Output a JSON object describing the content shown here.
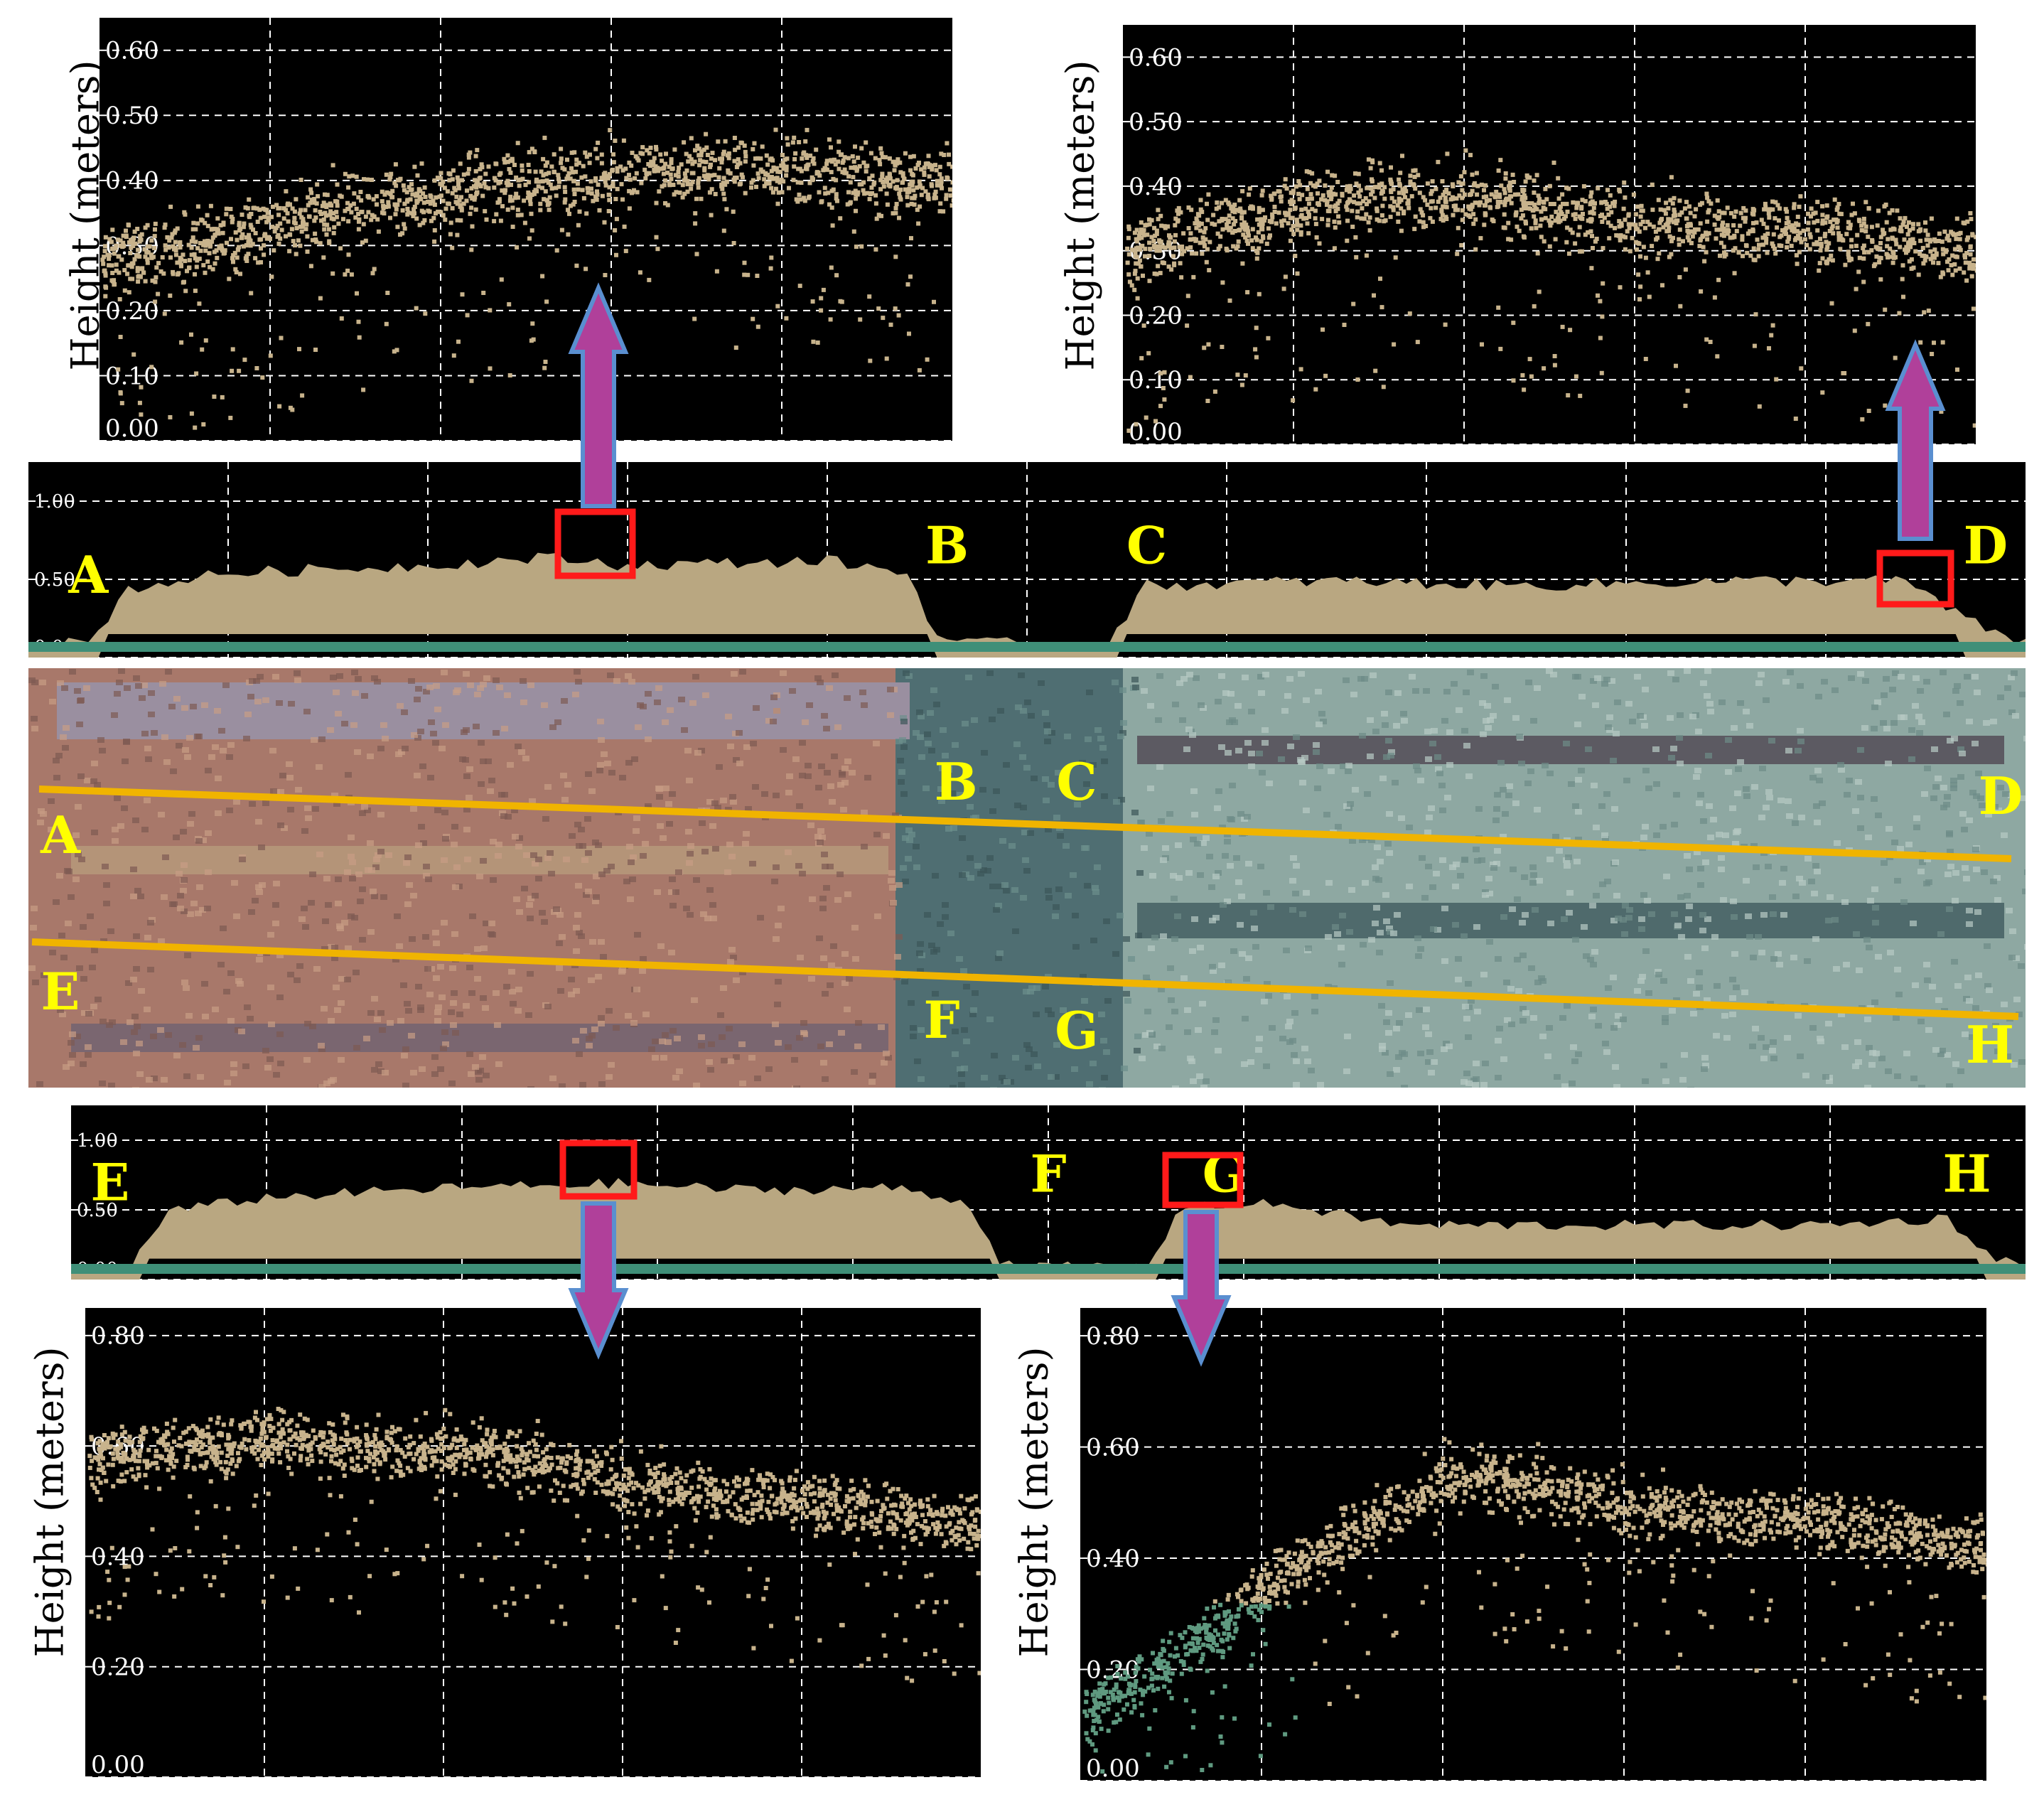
{
  "chart_data": [
    {
      "id": "detail_top_left",
      "type": "scatter",
      "ylabel": "Height (meters)",
      "yticks": [
        "0.00",
        "0.10",
        "0.20",
        "0.30",
        "0.40",
        "0.50",
        "0.60"
      ],
      "ylim": [
        0,
        0.65
      ],
      "grid": true,
      "point_color": "#c8b38c",
      "profile": [
        [
          0,
          0.28
        ],
        [
          0.1,
          0.3
        ],
        [
          0.2,
          0.33
        ],
        [
          0.3,
          0.36
        ],
        [
          0.4,
          0.38
        ],
        [
          0.5,
          0.4
        ],
        [
          0.6,
          0.41
        ],
        [
          0.7,
          0.42
        ],
        [
          0.8,
          0.42
        ],
        [
          0.9,
          0.41
        ],
        [
          1,
          0.4
        ]
      ]
    },
    {
      "id": "detail_top_right",
      "type": "scatter",
      "ylabel": "Height (meters)",
      "yticks": [
        "0.00",
        "0.10",
        "0.20",
        "0.30",
        "0.40",
        "0.50",
        "0.60"
      ],
      "ylim": [
        0,
        0.65
      ],
      "grid": true,
      "point_color": "#c8b38c",
      "profile": [
        [
          0,
          0.3
        ],
        [
          0.1,
          0.34
        ],
        [
          0.2,
          0.37
        ],
        [
          0.3,
          0.39
        ],
        [
          0.4,
          0.39
        ],
        [
          0.5,
          0.37
        ],
        [
          0.6,
          0.35
        ],
        [
          0.7,
          0.34
        ],
        [
          0.8,
          0.33
        ],
        [
          0.9,
          0.32
        ],
        [
          1,
          0.3
        ]
      ]
    },
    {
      "id": "transect_AD",
      "type": "scatter",
      "yticks": [
        "0.00",
        "0.50",
        "1.00"
      ],
      "ylim": [
        0,
        1.25
      ],
      "grid": true,
      "labels": [
        "A",
        "B",
        "C",
        "D"
      ],
      "profile": [
        [
          0,
          0.05
        ],
        [
          0.03,
          0.05
        ],
        [
          0.05,
          0.4
        ],
        [
          0.1,
          0.5
        ],
        [
          0.2,
          0.55
        ],
        [
          0.26,
          0.6
        ],
        [
          0.3,
          0.55
        ],
        [
          0.4,
          0.58
        ],
        [
          0.44,
          0.5
        ],
        [
          0.455,
          0.1
        ],
        [
          0.47,
          0.05
        ],
        [
          0.54,
          0.05
        ],
        [
          0.56,
          0.42
        ],
        [
          0.65,
          0.45
        ],
        [
          0.75,
          0.42
        ],
        [
          0.85,
          0.45
        ],
        [
          0.94,
          0.45
        ],
        [
          0.97,
          0.2
        ],
        [
          1,
          0.05
        ]
      ]
    },
    {
      "id": "transect_EH",
      "type": "scatter",
      "yticks": [
        "0.00",
        "0.50",
        "1.00"
      ],
      "ylim": [
        0,
        1.25
      ],
      "grid": true,
      "labels": [
        "E",
        "F",
        "G",
        "H"
      ],
      "profile": [
        [
          0,
          0.05
        ],
        [
          0.03,
          0.05
        ],
        [
          0.05,
          0.45
        ],
        [
          0.1,
          0.55
        ],
        [
          0.2,
          0.62
        ],
        [
          0.28,
          0.65
        ],
        [
          0.35,
          0.6
        ],
        [
          0.42,
          0.62
        ],
        [
          0.46,
          0.5
        ],
        [
          0.475,
          0.1
        ],
        [
          0.49,
          0.05
        ],
        [
          0.55,
          0.05
        ],
        [
          0.57,
          0.5
        ],
        [
          0.62,
          0.5
        ],
        [
          0.68,
          0.35
        ],
        [
          0.8,
          0.35
        ],
        [
          0.9,
          0.35
        ],
        [
          0.96,
          0.4
        ],
        [
          0.98,
          0.15
        ],
        [
          1,
          0.05
        ]
      ]
    },
    {
      "id": "detail_bottom_left",
      "type": "scatter",
      "ylabel": "Height (meters)",
      "yticks": [
        "0.00",
        "0.20",
        "0.40",
        "0.60",
        "0.80"
      ],
      "ylim": [
        0,
        0.85
      ],
      "grid": true,
      "point_color": "#c8b38c",
      "profile": [
        [
          0,
          0.58
        ],
        [
          0.1,
          0.6
        ],
        [
          0.2,
          0.62
        ],
        [
          0.3,
          0.6
        ],
        [
          0.4,
          0.6
        ],
        [
          0.5,
          0.58
        ],
        [
          0.6,
          0.54
        ],
        [
          0.7,
          0.52
        ],
        [
          0.8,
          0.5
        ],
        [
          0.9,
          0.48
        ],
        [
          1,
          0.46
        ]
      ]
    },
    {
      "id": "detail_bottom_right",
      "type": "scatter",
      "ylabel": "Height (meters)",
      "yticks": [
        "0.00",
        "0.20",
        "0.40",
        "0.60",
        "0.80"
      ],
      "ylim": [
        0,
        0.85
      ],
      "grid": true,
      "point_color": "#c8b38c",
      "green_color": "#5f9a80",
      "profile": [
        [
          0,
          0.12
        ],
        [
          0.1,
          0.22
        ],
        [
          0.2,
          0.35
        ],
        [
          0.3,
          0.45
        ],
        [
          0.4,
          0.55
        ],
        [
          0.5,
          0.54
        ],
        [
          0.6,
          0.5
        ],
        [
          0.7,
          0.48
        ],
        [
          0.8,
          0.47
        ],
        [
          0.9,
          0.45
        ],
        [
          1,
          0.42
        ]
      ]
    }
  ],
  "ortho": {
    "labels": [
      "A",
      "B",
      "C",
      "D",
      "E",
      "F",
      "G",
      "H"
    ],
    "line_color": "#f0b400",
    "label_color": "#ffff00"
  },
  "colors": {
    "box": "#ff1a1a",
    "arrow_fill": "#b0409a",
    "arrow_stroke": "#5a8fd0",
    "label": "#ffff00",
    "grid": "#ffffff"
  }
}
